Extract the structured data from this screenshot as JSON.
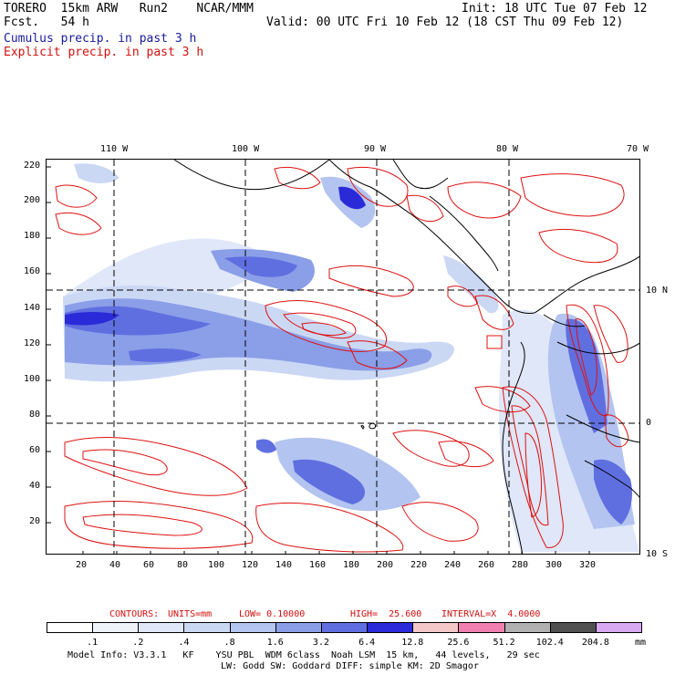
{
  "header": {
    "title_line": "TORERO  15km ARW   Run2    NCAR/MMM",
    "forecast_line": "Fcst.   54 h",
    "init_line": "Init: 18 UTC Tue 07 Feb 12",
    "valid_line": "Valid: 00 UTC Fri 10 Feb 12 (18 CST Thu 09 Feb 12)",
    "field_1": "Cumulus precip. in past 3 h",
    "field_2": "Explicit precip. in past 3 h",
    "field_1_color": "#1a1aa0",
    "field_2_color": "#d01010"
  },
  "map": {
    "top_lon_labels": [
      "110 W",
      "100 W",
      "90 W",
      "80 W",
      "70 W"
    ],
    "right_lat_labels": [
      "10 N",
      "0",
      "10 S"
    ],
    "x_ticks": [
      "20",
      "40",
      "60",
      "80",
      "100",
      "120",
      "140",
      "160",
      "180",
      "200",
      "220",
      "240",
      "260",
      "280",
      "300",
      "320"
    ],
    "y_ticks": [
      "220",
      "200",
      "180",
      "160",
      "140",
      "120",
      "100",
      "80",
      "60",
      "40",
      "20"
    ],
    "contour_color": "#dd1111",
    "coastline_color": "#000000",
    "grid_style": "dashed"
  },
  "contour_info": {
    "contours_label": "CONTOURS:",
    "units": "UNITS=mm",
    "low": "LOW= 0.10000",
    "high": "HIGH=  25.600",
    "interval": "INTERVAL=X  4.0000"
  },
  "colorbar": {
    "unit": "mm",
    "labels": [
      ".1",
      ".2",
      ".4",
      ".8",
      "1.6",
      "3.2",
      "6.4",
      "12.8",
      "25.6",
      "51.2",
      "102.4",
      "204.8"
    ],
    "colors": [
      "#ffffff",
      "#eef2fb",
      "#dfe7f8",
      "#cbd8f4",
      "#b3c4f0",
      "#8b9ee8",
      "#5f6fe0",
      "#2a2ad8",
      "#f4c8c8",
      "#f080b0",
      "#b0b0b0",
      "#505050",
      "#d8a8f0"
    ]
  },
  "footer": {
    "line1": "Model Info: V3.3.1   KF    YSU PBL  WDM 6class  Noah LSM  15 km,   44 levels,   29 sec",
    "line2": "LW: Godd SW: Goddard DIFF: simple KM: 2D Smagor"
  }
}
